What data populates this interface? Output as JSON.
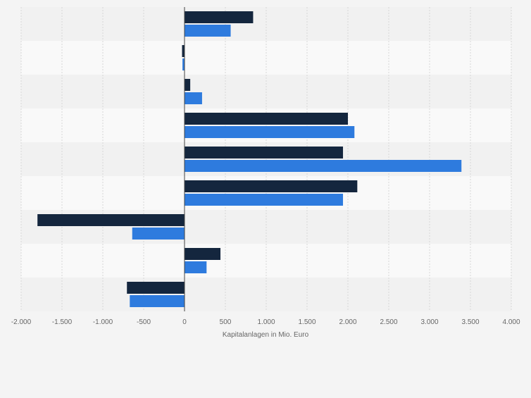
{
  "colors": {
    "background": "#f4f4f4",
    "band_light": "#f9f9f9",
    "band_dark": "#f1f1f1",
    "series_dark": "#14263e",
    "series_blue": "#2e7bde",
    "axis_line": "#444444",
    "grid": "#d7d7d7",
    "tick_text": "#666666",
    "label_text": "#666666"
  },
  "chart_data": {
    "type": "bar",
    "orientation": "horizontal",
    "title": "",
    "xlabel": "Kapitalanlagen in Mio. Euro",
    "ylabel": "",
    "xlim": [
      -2000,
      4000
    ],
    "xticks": [
      -2000,
      -1500,
      -1000,
      -500,
      0,
      500,
      1000,
      1500,
      2000,
      2500,
      3000,
      3500,
      4000
    ],
    "xtick_labels": [
      "-2.000",
      "-1.500",
      "-1.000",
      "-500",
      "0",
      "500",
      "1.000",
      "1.500",
      "2.000",
      "2.500",
      "3.000",
      "3.500",
      "4.000"
    ],
    "grid": true,
    "legend": "none",
    "categories": [
      "",
      "",
      "",
      "",
      "",
      "",
      "",
      "",
      ""
    ],
    "series": [
      {
        "color": "#14263e",
        "values": [
          840,
          -30,
          70,
          2000,
          1940,
          2115,
          -1800,
          440,
          -705
        ]
      },
      {
        "color": "#2e7bde",
        "values": [
          565,
          -25,
          215,
          2080,
          3390,
          1940,
          -640,
          270,
          -670
        ]
      }
    ]
  }
}
